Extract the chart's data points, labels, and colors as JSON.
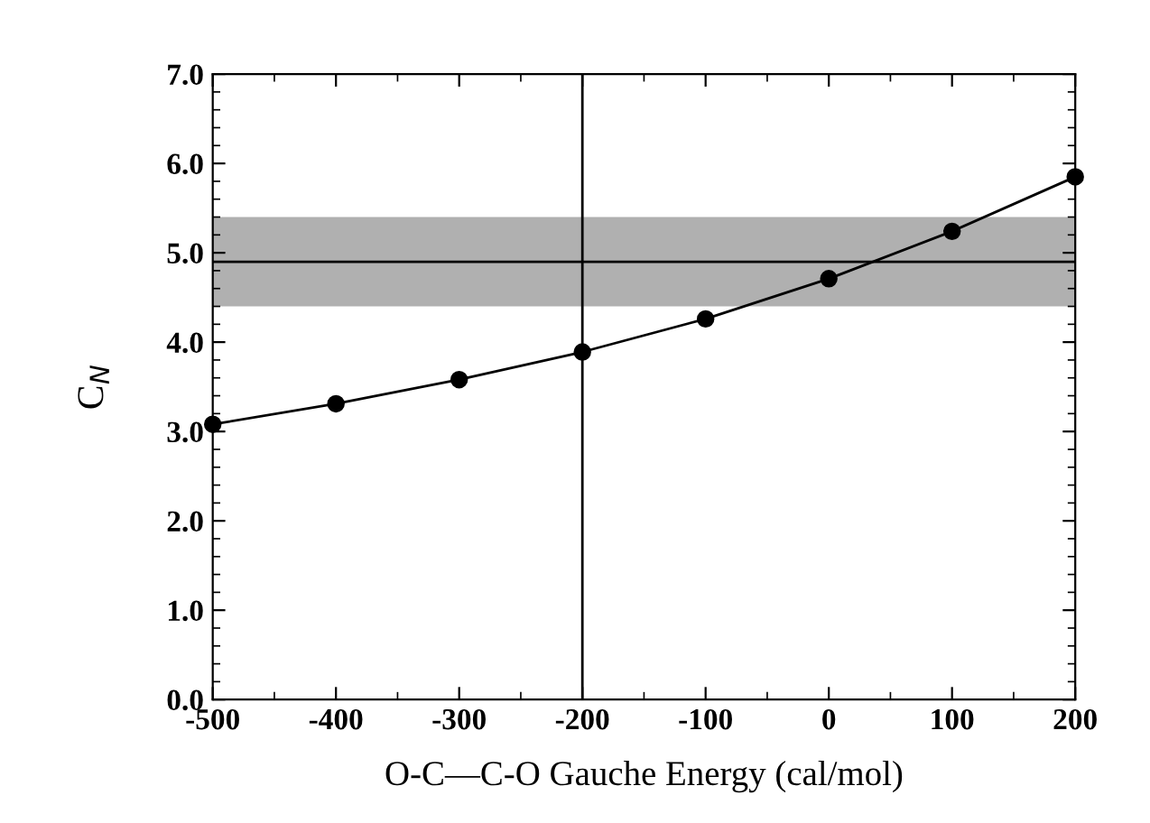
{
  "chart_data": {
    "type": "line",
    "xlabel": "O-C—C-O Gauche Energy (cal/mol)",
    "ylabel": "C$_{N}$",
    "x": [
      -500,
      -400,
      -300,
      -200,
      -100,
      0,
      100,
      200
    ],
    "series": [
      {
        "color": "#000000",
        "values": [
          3.08,
          3.31,
          3.58,
          3.89,
          4.26,
          4.71,
          5.24,
          5.85
        ]
      }
    ],
    "marker": "circle",
    "line_style": "solid",
    "xlim": [
      -500,
      200
    ],
    "ylim": [
      0,
      7
    ],
    "xticks": [
      -500,
      -400,
      -300,
      -200,
      -100,
      0,
      100,
      200
    ],
    "yticks": [
      {
        "value": 0,
        "label": "0.0"
      },
      {
        "value": 1,
        "label": "1.0"
      },
      {
        "value": 2,
        "label": "2.0"
      },
      {
        "value": 3,
        "label": "3.0"
      },
      {
        "value": 4,
        "label": "4.0"
      },
      {
        "value": 5,
        "label": "5.0"
      },
      {
        "value": 6,
        "label": "6.0"
      },
      {
        "value": 7,
        "label": "7.0"
      }
    ],
    "ref_lines": [
      {
        "axis": "x",
        "value": -200,
        "color": "#000000"
      },
      {
        "axis": "y",
        "value": 4.9,
        "color": "#000000"
      }
    ],
    "bands": [
      {
        "axis": "y",
        "from": 4.4,
        "to": 5.4,
        "color": "#b0b0b0"
      }
    ],
    "grid": false,
    "legend": false
  }
}
